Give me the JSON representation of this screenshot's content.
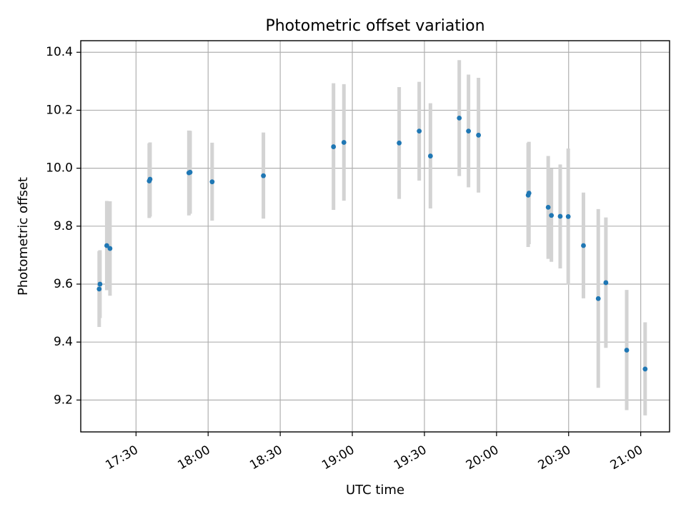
{
  "chart_data": {
    "type": "scatter",
    "title": "Photometric offset variation",
    "xlabel": "UTC time",
    "ylabel": "Photometric offset",
    "grid": true,
    "xlim": [
      "17:07",
      "21:12"
    ],
    "ylim": [
      9.09,
      10.44
    ],
    "x_ticks": [
      "17:30",
      "18:00",
      "18:30",
      "19:00",
      "19:30",
      "20:00",
      "20:30",
      "21:00"
    ],
    "y_ticks": [
      9.2,
      9.4,
      9.6,
      9.8,
      10.0,
      10.2,
      10.4
    ],
    "y_tick_labels": [
      "9.2",
      "9.4",
      "9.6",
      "9.8",
      "10.0",
      "10.2",
      "10.4"
    ],
    "point_color": "#1f77b4",
    "errorbar_color": "#d3d3d3",
    "points": [
      {
        "x": "17:14:40",
        "y": 9.583,
        "err_low": 9.452,
        "err_high": 9.714
      },
      {
        "x": "17:15:00",
        "y": 9.6,
        "err_low": 9.483,
        "err_high": 9.717
      },
      {
        "x": "17:17:50",
        "y": 9.733,
        "err_low": 9.579,
        "err_high": 9.887
      },
      {
        "x": "17:19:10",
        "y": 9.723,
        "err_low": 9.56,
        "err_high": 9.886
      },
      {
        "x": "17:35:30",
        "y": 9.956,
        "err_low": 9.828,
        "err_high": 10.086
      },
      {
        "x": "17:35:50",
        "y": 9.962,
        "err_low": 9.833,
        "err_high": 10.089
      },
      {
        "x": "17:52:00",
        "y": 9.984,
        "err_low": 9.837,
        "err_high": 10.13
      },
      {
        "x": "17:52:30",
        "y": 9.986,
        "err_low": 9.843,
        "err_high": 10.129
      },
      {
        "x": "18:01:40",
        "y": 9.953,
        "err_low": 9.819,
        "err_high": 10.088
      },
      {
        "x": "18:23:00",
        "y": 9.974,
        "err_low": 9.826,
        "err_high": 10.123
      },
      {
        "x": "18:52:10",
        "y": 10.074,
        "err_low": 9.856,
        "err_high": 10.293
      },
      {
        "x": "18:56:30",
        "y": 10.089,
        "err_low": 9.888,
        "err_high": 10.29
      },
      {
        "x": "19:19:30",
        "y": 10.087,
        "err_low": 9.894,
        "err_high": 10.28
      },
      {
        "x": "19:27:50",
        "y": 10.128,
        "err_low": 9.957,
        "err_high": 10.298
      },
      {
        "x": "19:32:30",
        "y": 10.042,
        "err_low": 9.861,
        "err_high": 10.224
      },
      {
        "x": "19:44:30",
        "y": 10.173,
        "err_low": 9.973,
        "err_high": 10.373
      },
      {
        "x": "19:48:20",
        "y": 10.128,
        "err_low": 9.934,
        "err_high": 10.323
      },
      {
        "x": "19:52:30",
        "y": 10.114,
        "err_low": 9.916,
        "err_high": 10.312
      },
      {
        "x": "20:13:10",
        "y": 9.907,
        "err_low": 9.728,
        "err_high": 10.087
      },
      {
        "x": "20:13:30",
        "y": 9.914,
        "err_low": 9.738,
        "err_high": 10.091
      },
      {
        "x": "20:21:30",
        "y": 9.865,
        "err_low": 9.687,
        "err_high": 10.042
      },
      {
        "x": "20:22:50",
        "y": 9.837,
        "err_low": 9.677,
        "err_high": 9.998
      },
      {
        "x": "20:26:30",
        "y": 9.834,
        "err_low": 9.654,
        "err_high": 10.013
      },
      {
        "x": "20:29:50",
        "y": 9.833,
        "err_low": 9.598,
        "err_high": 10.068
      },
      {
        "x": "20:36:10",
        "y": 9.733,
        "err_low": 9.551,
        "err_high": 9.916
      },
      {
        "x": "20:42:20",
        "y": 9.55,
        "err_low": 9.242,
        "err_high": 9.859
      },
      {
        "x": "20:45:30",
        "y": 9.605,
        "err_low": 9.38,
        "err_high": 9.83
      },
      {
        "x": "20:54:10",
        "y": 9.372,
        "err_low": 9.165,
        "err_high": 9.58
      },
      {
        "x": "21:01:50",
        "y": 9.307,
        "err_low": 9.147,
        "err_high": 9.468
      }
    ]
  }
}
